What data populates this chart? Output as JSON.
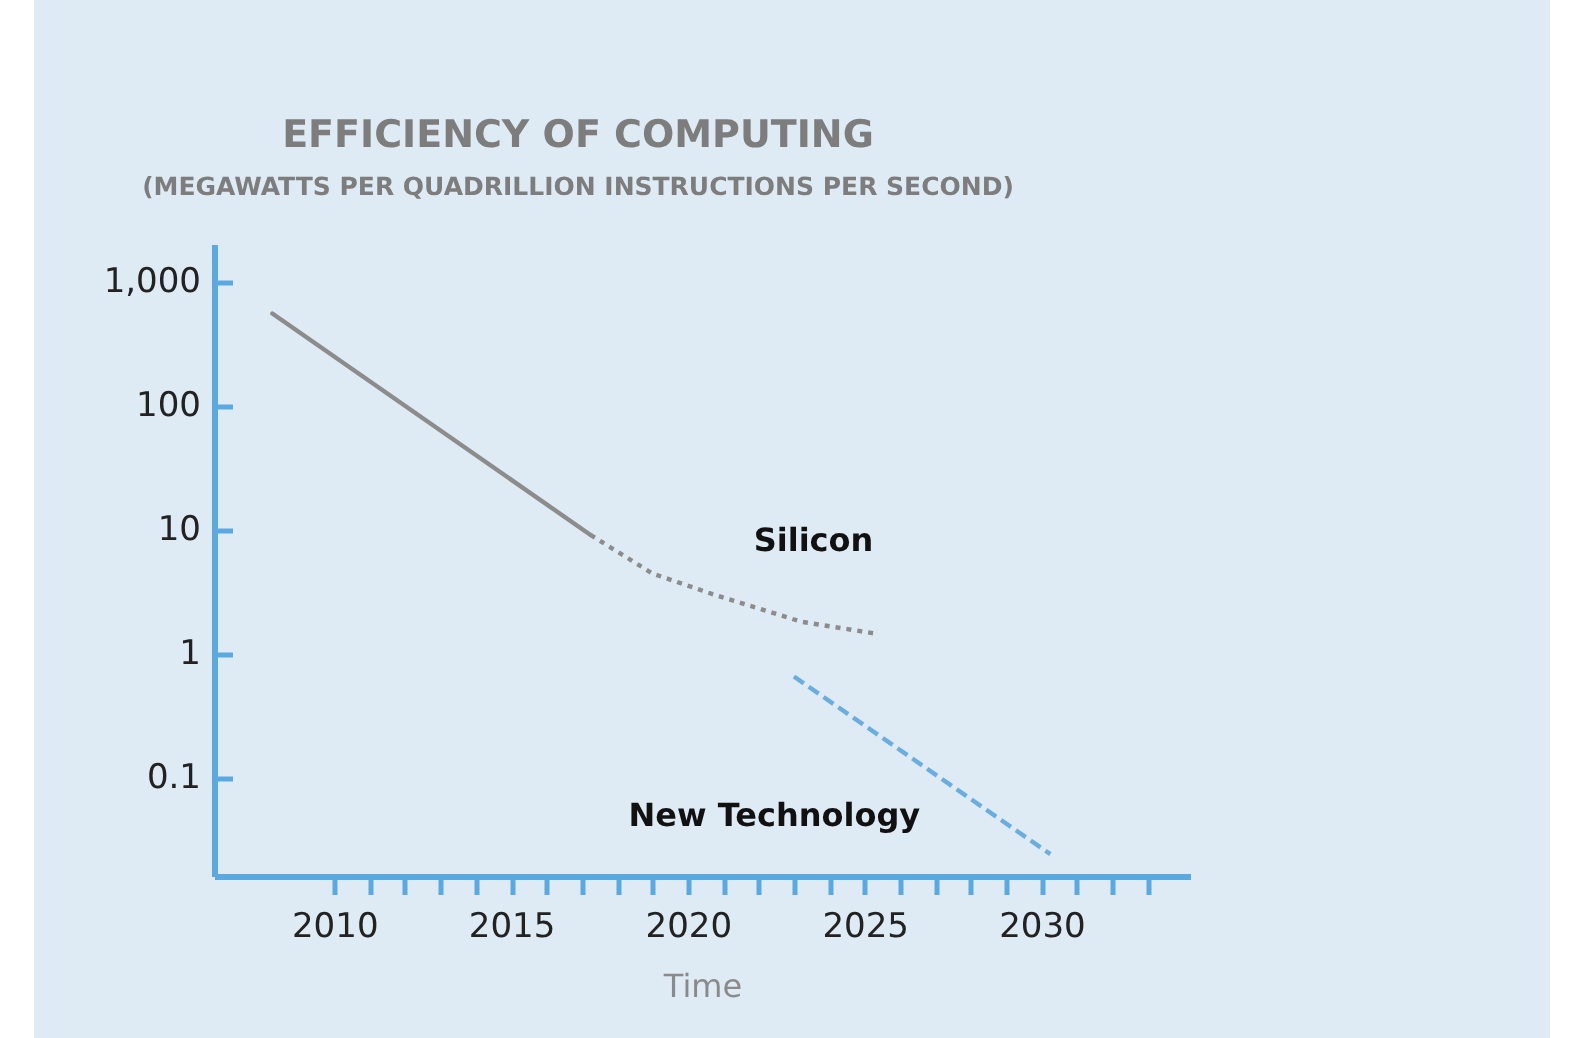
{
  "chart_data": {
    "type": "line",
    "title": "EFFICIENCY OF COMPUTING",
    "subtitle": "(MEGAWATTS PER QUADRILLION INSTRUCTIONS PER SECOND)",
    "xlabel": "Time",
    "log": true,
    "xlim": [
      2006.6,
      2034.2
    ],
    "ylim": [
      0.016,
      2000
    ],
    "xticks": [
      2010,
      {
        "value": 2011,
        "label": null
      },
      {
        "value": 2012,
        "label": null
      },
      {
        "value": 2013,
        "label": null
      },
      {
        "value": 2014,
        "label": null
      },
      2015,
      {
        "value": 2016,
        "label": null
      },
      {
        "value": 2017,
        "label": null
      },
      {
        "value": 2018,
        "label": null
      },
      {
        "value": 2019,
        "label": null
      },
      2020,
      {
        "value": 2021,
        "label": null
      },
      {
        "value": 2022,
        "label": null
      },
      {
        "value": 2023,
        "label": null
      },
      {
        "value": 2024,
        "label": null
      },
      2025,
      {
        "value": 2026,
        "label": null
      },
      {
        "value": 2027,
        "label": null
      },
      {
        "value": 2028,
        "label": null
      },
      {
        "value": 2029,
        "label": null
      },
      2030,
      {
        "value": 2031,
        "label": null
      },
      {
        "value": 2032,
        "label": null
      },
      {
        "value": 2033,
        "label": null
      }
    ],
    "yticks": [
      0.1,
      1,
      10,
      100,
      {
        "value": 1000,
        "label": "1,000"
      }
    ],
    "series": [
      {
        "color": "#8c8c8c",
        "line_style": "solid",
        "x": [
          2008.25,
          2017.25
        ],
        "values": [
          550,
          9
        ]
      },
      {
        "name": "Silicon",
        "color": "#8c8c8c",
        "line_style": "dotted",
        "x": [
          2017.25,
          2019,
          2020.7,
          2023.2,
          2025.25
        ],
        "values": [
          9,
          4.4,
          3,
          1.8,
          1.45
        ]
      },
      {
        "name": "New Technology",
        "color": "#6aaee0",
        "line_style": "dashed",
        "x": [
          2023,
          2030.25
        ],
        "values": [
          0.65,
          0.024
        ]
      }
    ]
  }
}
